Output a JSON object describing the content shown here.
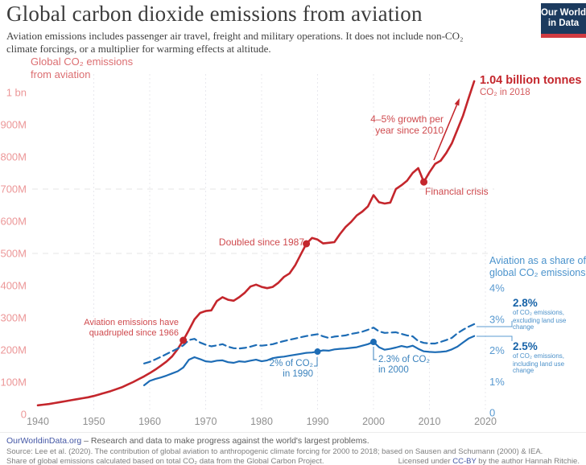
{
  "header": {
    "title": "Global carbon dioxide emissions from aviation",
    "subtitle_line1": "Aviation emissions includes passenger air travel, freight and military operations. It does not include non-CO₂",
    "subtitle_line2": "climate forcings, or a multiplier for warming effects at altitude.",
    "logo": {
      "line1": "Our World",
      "line2": "in Data"
    }
  },
  "chart_data": {
    "type": "line",
    "title": "Global carbon dioxide emissions from aviation",
    "left_axis": {
      "title_line1": "Global CO₂ emissions",
      "title_line2": "from aviation",
      "unit": "tonnes CO₂",
      "range": [
        0,
        1000
      ],
      "ticks": [
        {
          "label": "1 bn",
          "value": 1000
        },
        {
          "label": "900M",
          "value": 900
        },
        {
          "label": "800M",
          "value": 800
        },
        {
          "label": "700M",
          "value": 700
        },
        {
          "label": "600M",
          "value": 600
        },
        {
          "label": "500M",
          "value": 500
        },
        {
          "label": "400M",
          "value": 400
        },
        {
          "label": "300M",
          "value": 300
        },
        {
          "label": "200M",
          "value": 200
        },
        {
          "label": "100M",
          "value": 100
        },
        {
          "label": "0",
          "value": 0
        }
      ],
      "gridline_values": [
        700,
        500
      ]
    },
    "right_axis": {
      "title_line1": "Aviation as a share of",
      "title_line2": "global CO₂ emissions",
      "range": [
        0,
        4
      ],
      "ticks": [
        {
          "label": "4%",
          "value": 4
        },
        {
          "label": "3%",
          "value": 3
        },
        {
          "label": "2%",
          "value": 2
        },
        {
          "label": "1%",
          "value": 1
        },
        {
          "label": "0",
          "value": 0
        }
      ]
    },
    "x_axis": {
      "range": [
        1940,
        2020
      ],
      "ticks": [
        1940,
        1950,
        1960,
        1970,
        1980,
        1990,
        2000,
        2010,
        2020
      ],
      "gridline_years": [
        1950,
        1960,
        1970,
        1980,
        1990,
        2000,
        2010,
        2020
      ]
    },
    "series": [
      {
        "name": "Global CO₂ emissions from aviation (million tonnes)",
        "axis": "left",
        "style": "solid",
        "color": "#c4262c",
        "points": [
          [
            1940,
            28
          ],
          [
            1941,
            30
          ],
          [
            1942,
            32
          ],
          [
            1943,
            35
          ],
          [
            1944,
            38
          ],
          [
            1945,
            41
          ],
          [
            1946,
            44
          ],
          [
            1947,
            47
          ],
          [
            1948,
            50
          ],
          [
            1949,
            53
          ],
          [
            1950,
            57
          ],
          [
            1951,
            62
          ],
          [
            1952,
            67
          ],
          [
            1953,
            72
          ],
          [
            1954,
            78
          ],
          [
            1955,
            84
          ],
          [
            1956,
            92
          ],
          [
            1957,
            100
          ],
          [
            1958,
            109
          ],
          [
            1959,
            118
          ],
          [
            1960,
            128
          ],
          [
            1961,
            139
          ],
          [
            1962,
            151
          ],
          [
            1963,
            164
          ],
          [
            1964,
            180
          ],
          [
            1965,
            203
          ],
          [
            1966,
            230
          ],
          [
            1967,
            262
          ],
          [
            1968,
            295
          ],
          [
            1969,
            315
          ],
          [
            1970,
            321
          ],
          [
            1971,
            323
          ],
          [
            1972,
            352
          ],
          [
            1973,
            364
          ],
          [
            1974,
            356
          ],
          [
            1975,
            353
          ],
          [
            1976,
            364
          ],
          [
            1977,
            378
          ],
          [
            1978,
            397
          ],
          [
            1979,
            403
          ],
          [
            1980,
            396
          ],
          [
            1981,
            392
          ],
          [
            1982,
            396
          ],
          [
            1983,
            409
          ],
          [
            1984,
            427
          ],
          [
            1985,
            438
          ],
          [
            1986,
            463
          ],
          [
            1987,
            497
          ],
          [
            1988,
            530
          ],
          [
            1989,
            548
          ],
          [
            1990,
            543
          ],
          [
            1991,
            531
          ],
          [
            1992,
            533
          ],
          [
            1993,
            535
          ],
          [
            1994,
            560
          ],
          [
            1995,
            582
          ],
          [
            1996,
            598
          ],
          [
            1997,
            618
          ],
          [
            1998,
            630
          ],
          [
            1999,
            646
          ],
          [
            2000,
            681
          ],
          [
            2001,
            659
          ],
          [
            2002,
            655
          ],
          [
            2003,
            658
          ],
          [
            2004,
            700
          ],
          [
            2005,
            712
          ],
          [
            2006,
            726
          ],
          [
            2007,
            750
          ],
          [
            2008,
            765
          ],
          [
            2009,
            722
          ],
          [
            2010,
            752
          ],
          [
            2011,
            778
          ],
          [
            2012,
            788
          ],
          [
            2013,
            812
          ],
          [
            2014,
            842
          ],
          [
            2015,
            885
          ],
          [
            2016,
            928
          ],
          [
            2017,
            982
          ],
          [
            2018,
            1035
          ]
        ]
      },
      {
        "name": "Share of global CO₂ emissions, excluding land use change (%)",
        "axis": "right",
        "style": "dashed",
        "color": "#1d6cb5",
        "points": [
          [
            1959,
            1.58
          ],
          [
            1960,
            1.63
          ],
          [
            1961,
            1.71
          ],
          [
            1962,
            1.79
          ],
          [
            1963,
            1.88
          ],
          [
            1964,
            1.97
          ],
          [
            1965,
            2.06
          ],
          [
            1966,
            2.16
          ],
          [
            1967,
            2.33
          ],
          [
            1968,
            2.37
          ],
          [
            1969,
            2.25
          ],
          [
            1970,
            2.18
          ],
          [
            1971,
            2.13
          ],
          [
            1972,
            2.16
          ],
          [
            1973,
            2.2
          ],
          [
            1974,
            2.12
          ],
          [
            1975,
            2.07
          ],
          [
            1976,
            2.06
          ],
          [
            1977,
            2.08
          ],
          [
            1978,
            2.12
          ],
          [
            1979,
            2.17
          ],
          [
            1980,
            2.15
          ],
          [
            1981,
            2.17
          ],
          [
            1982,
            2.2
          ],
          [
            1983,
            2.25
          ],
          [
            1984,
            2.3
          ],
          [
            1985,
            2.34
          ],
          [
            1986,
            2.38
          ],
          [
            1987,
            2.42
          ],
          [
            1988,
            2.46
          ],
          [
            1989,
            2.49
          ],
          [
            1990,
            2.52
          ],
          [
            1991,
            2.45
          ],
          [
            1992,
            2.4
          ],
          [
            1993,
            2.44
          ],
          [
            1994,
            2.46
          ],
          [
            1995,
            2.48
          ],
          [
            1996,
            2.53
          ],
          [
            1997,
            2.56
          ],
          [
            1998,
            2.6
          ],
          [
            1999,
            2.66
          ],
          [
            2000,
            2.73
          ],
          [
            2001,
            2.61
          ],
          [
            2002,
            2.56
          ],
          [
            2003,
            2.57
          ],
          [
            2004,
            2.58
          ],
          [
            2005,
            2.53
          ],
          [
            2006,
            2.48
          ],
          [
            2007,
            2.45
          ],
          [
            2008,
            2.3
          ],
          [
            2009,
            2.24
          ],
          [
            2010,
            2.22
          ],
          [
            2011,
            2.22
          ],
          [
            2012,
            2.27
          ],
          [
            2013,
            2.33
          ],
          [
            2014,
            2.4
          ],
          [
            2015,
            2.55
          ],
          [
            2016,
            2.66
          ],
          [
            2017,
            2.76
          ],
          [
            2018,
            2.84
          ]
        ]
      },
      {
        "name": "Share of global CO₂ emissions, including land use change (%)",
        "axis": "right",
        "style": "solid",
        "color": "#1d6cb5",
        "points": [
          [
            1959,
            0.88
          ],
          [
            1960,
            1.02
          ],
          [
            1961,
            1.08
          ],
          [
            1962,
            1.13
          ],
          [
            1963,
            1.19
          ],
          [
            1964,
            1.26
          ],
          [
            1965,
            1.33
          ],
          [
            1966,
            1.45
          ],
          [
            1967,
            1.7
          ],
          [
            1968,
            1.78
          ],
          [
            1969,
            1.72
          ],
          [
            1970,
            1.65
          ],
          [
            1971,
            1.63
          ],
          [
            1972,
            1.67
          ],
          [
            1973,
            1.68
          ],
          [
            1974,
            1.62
          ],
          [
            1975,
            1.6
          ],
          [
            1976,
            1.65
          ],
          [
            1977,
            1.63
          ],
          [
            1978,
            1.67
          ],
          [
            1979,
            1.7
          ],
          [
            1980,
            1.65
          ],
          [
            1981,
            1.68
          ],
          [
            1982,
            1.75
          ],
          [
            1983,
            1.78
          ],
          [
            1984,
            1.8
          ],
          [
            1985,
            1.83
          ],
          [
            1986,
            1.86
          ],
          [
            1987,
            1.89
          ],
          [
            1988,
            1.92
          ],
          [
            1989,
            1.93
          ],
          [
            1990,
            1.96
          ],
          [
            1991,
            2.0
          ],
          [
            1992,
            1.99
          ],
          [
            1993,
            2.03
          ],
          [
            1994,
            2.05
          ],
          [
            1995,
            2.06
          ],
          [
            1996,
            2.08
          ],
          [
            1997,
            2.1
          ],
          [
            1998,
            2.15
          ],
          [
            1999,
            2.2
          ],
          [
            2000,
            2.27
          ],
          [
            2001,
            2.1
          ],
          [
            2002,
            2.02
          ],
          [
            2003,
            2.05
          ],
          [
            2004,
            2.09
          ],
          [
            2005,
            2.14
          ],
          [
            2006,
            2.1
          ],
          [
            2007,
            2.15
          ],
          [
            2008,
            2.05
          ],
          [
            2009,
            1.97
          ],
          [
            2010,
            1.95
          ],
          [
            2011,
            1.94
          ],
          [
            2012,
            1.95
          ],
          [
            2013,
            1.97
          ],
          [
            2014,
            2.03
          ],
          [
            2015,
            2.12
          ],
          [
            2016,
            2.25
          ],
          [
            2017,
            2.38
          ],
          [
            2018,
            2.46
          ]
        ]
      }
    ],
    "markers": {
      "left": [
        [
          1966,
          230
        ],
        [
          1988,
          530
        ],
        [
          2009,
          722
        ]
      ],
      "right": [
        [
          1990,
          1.96
        ],
        [
          2000,
          2.27
        ]
      ]
    },
    "annotations": {
      "quadrupled": {
        "line1": "Aviation emissions have",
        "line2": "quadrupled since 1966"
      },
      "doubled": {
        "text": "Doubled since 1987"
      },
      "financial": {
        "text": "Financial crisis"
      },
      "growth": {
        "line1": "4–5% growth per",
        "line2": "year since 2010"
      },
      "end": {
        "line1": "1.04 billion tonnes",
        "line2": "CO₂ in 2018"
      },
      "share1990": {
        "line1": "2% of CO₂",
        "line2": "in 1990"
      },
      "share2000": {
        "line1": "2.3% of CO₂",
        "line2": "in 2000"
      },
      "share_excl": {
        "big": "2.8%",
        "sub1": "of CO₂ emissions,",
        "sub2": "excluding land use change"
      },
      "share_incl": {
        "big": "2.5%",
        "sub1": "of CO₂ emissions,",
        "sub2": "including land use change"
      }
    }
  },
  "footer": {
    "owid": "OurWorldinData.org",
    "tagline": " – Research and data to make progress against the world's largest problems.",
    "source": "Source: Lee et al. (2020). The contribution of global aviation to anthropogenic climate forcing for 2000 to 2018; based on Sausen and Schumann (2000) & IEA.",
    "note": "Share of global emissions calculated based on total CO₂ data from the Global Carbon Project.",
    "license_pre": "Licensed under ",
    "license_link": "CC-BY",
    "license_post": " by the author Hannah Ritchie."
  }
}
